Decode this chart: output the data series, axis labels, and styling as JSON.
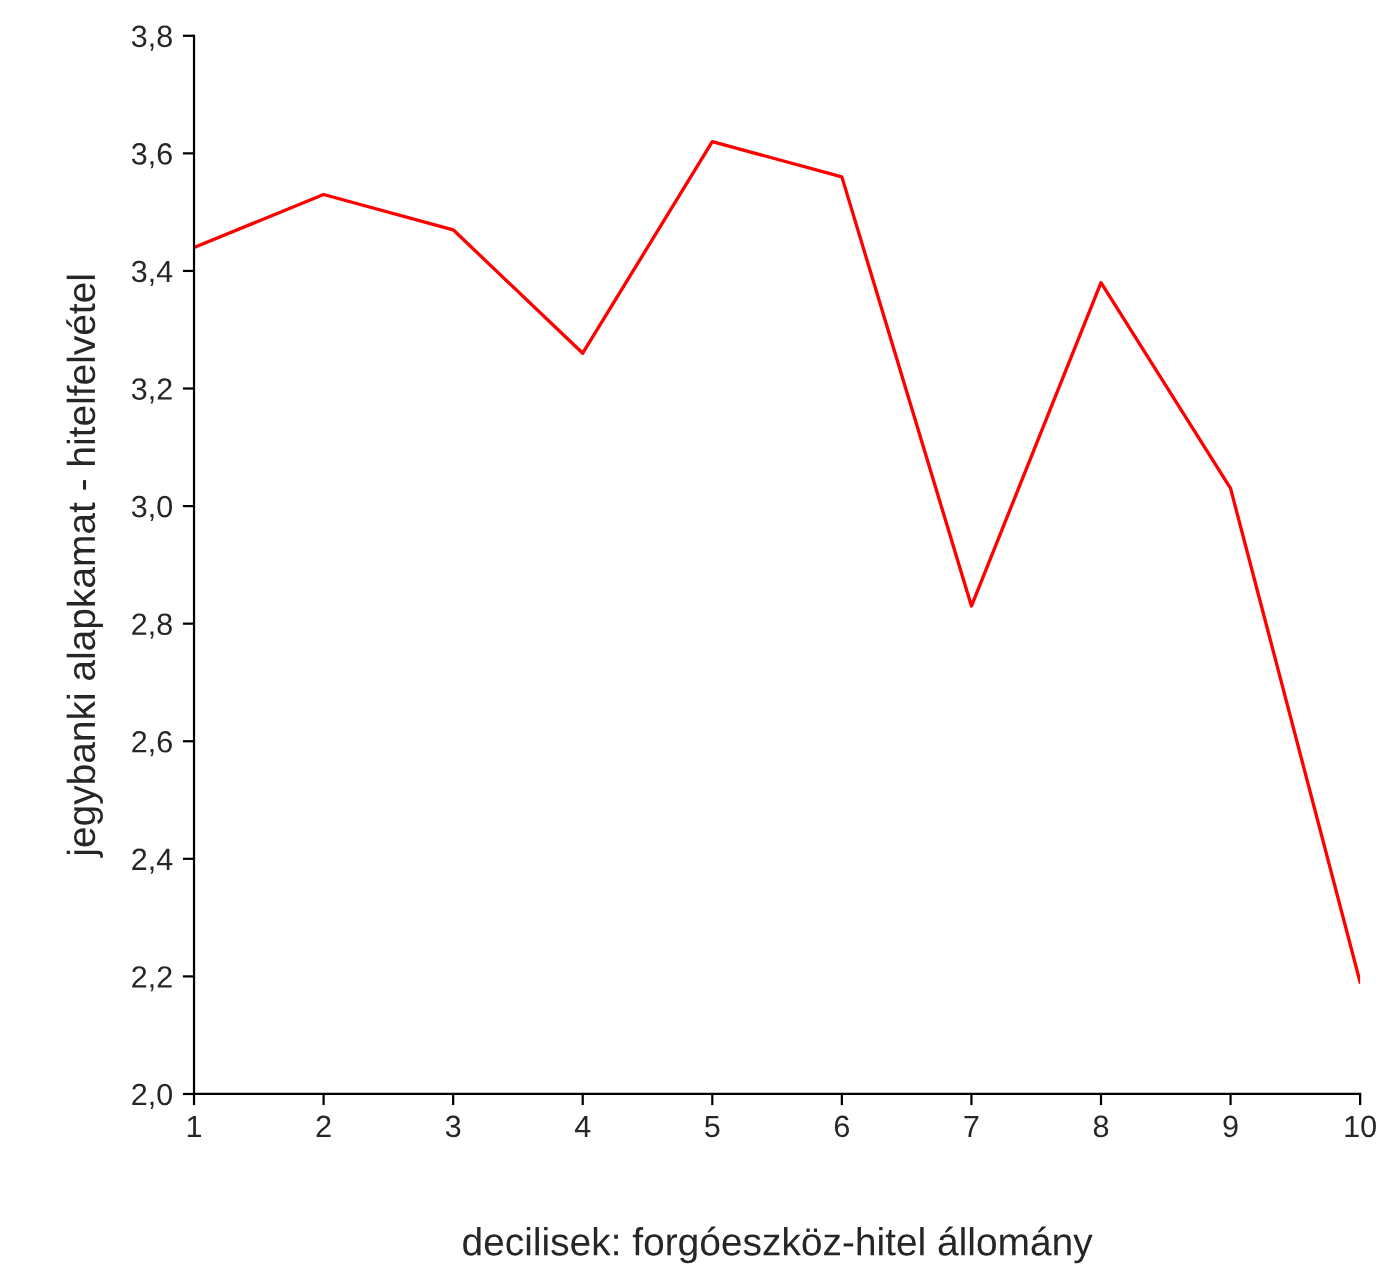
{
  "chart_data": {
    "type": "line",
    "xlabel": "decilisek: forgóeszköz-hitel állomány",
    "ylabel": "jegybanki alapkamat - hitelfelvétel",
    "x": [
      1,
      2,
      3,
      4,
      5,
      6,
      7,
      8,
      9,
      10
    ],
    "series": [
      {
        "color": "#ff0000",
        "values": [
          3.44,
          3.53,
          3.47,
          3.26,
          3.62,
          3.56,
          2.83,
          3.38,
          3.03,
          2.19
        ]
      }
    ],
    "xlim": [
      1,
      10
    ],
    "xticks": [
      1,
      2,
      3,
      4,
      5,
      6,
      7,
      8,
      9,
      10
    ],
    "ylim": [
      2.0,
      3.8
    ],
    "yticks": [
      {
        "value": 2.0,
        "label": "2,0"
      },
      {
        "value": 2.2,
        "label": "2,2"
      },
      {
        "value": 2.4,
        "label": "2,4"
      },
      {
        "value": 2.6,
        "label": "2,6"
      },
      {
        "value": 2.8,
        "label": "2,8"
      },
      {
        "value": 3.0,
        "label": "3,0"
      },
      {
        "value": 3.2,
        "label": "3,2"
      },
      {
        "value": 3.4,
        "label": "3,4"
      },
      {
        "value": 3.6,
        "label": "3,6"
      },
      {
        "value": 3.8,
        "label": "3,8"
      }
    ],
    "marker": "none",
    "line_style": "solid"
  }
}
